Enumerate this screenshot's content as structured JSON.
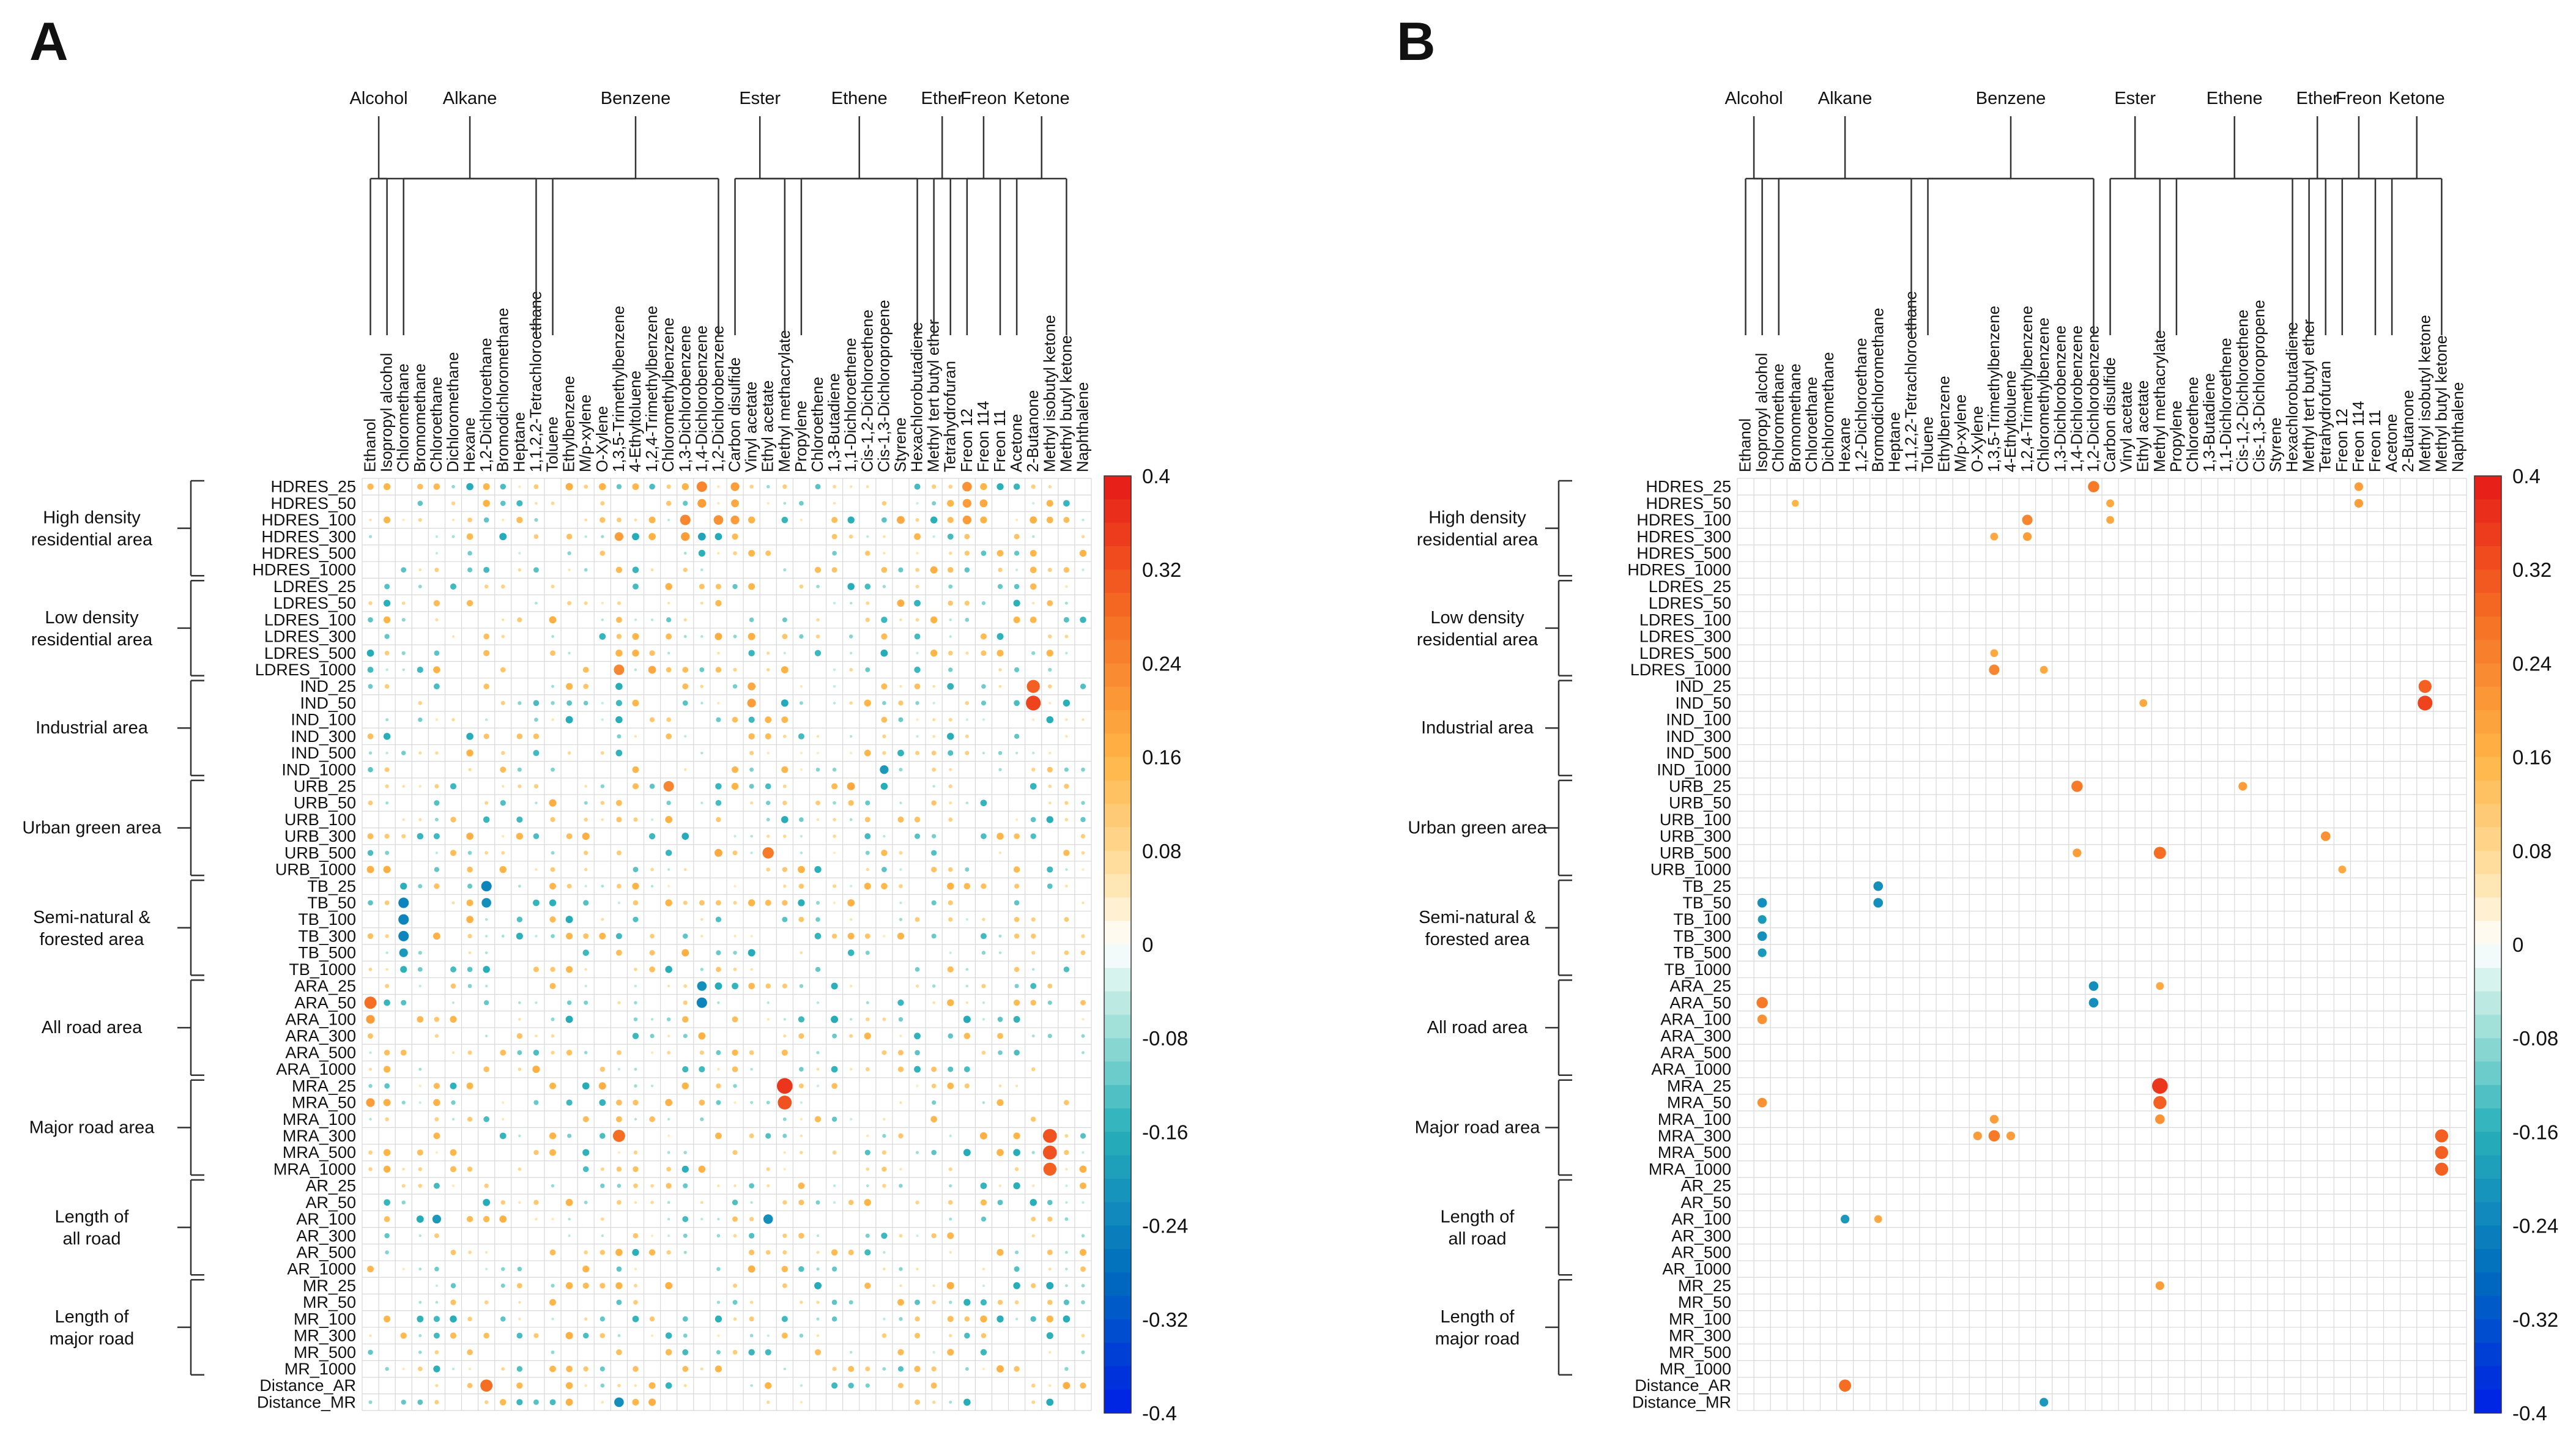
{
  "panels": [
    "A",
    "B"
  ],
  "chart_data": [
    {
      "type": "heatmap",
      "panel": "A",
      "title": "",
      "columns": [
        "Ethanol",
        "Isopropyl alcohol",
        "Chloromethane",
        "Bromomethane",
        "Chloroethane",
        "Dichloromethane",
        "Hexane",
        "1,2-Dichloroethane",
        "Bromodichloromethane",
        "Heptane",
        "1,1,2,2-Tetrachloroethane",
        "Toluene",
        "Ethylbenzene",
        "M/p-xylene",
        "O-Xylene",
        "1,3,5-Trimethylbenzene",
        "4-Ethyltoluene",
        "1,2,4-Trimethylbenzene",
        "Chloromethylbenzene",
        "1,3-Dichlorobenzene",
        "1,4-Dichlorobenzene",
        "1,2-Dichlorobenzene",
        "Carbon disulfide",
        "Vinyl acetate",
        "Ethyl acetate",
        "Methyl methacrylate",
        "Propylene",
        "Chloroethene",
        "1,3-Butadiene",
        "1,1-Dichloroethene",
        "Cis-1,2-Dichloroethene",
        "Cis-1,3-Dichloropropene",
        "Styrene",
        "Hexachlorobutadiene",
        "Methyl tert butyl ether",
        "Tetrahydrofuran",
        "Freon 12",
        "Freon 114",
        "Freon 11",
        "Acetone",
        "2-Butanone",
        "Methyl isobutyl ketone",
        "Methyl butyl ketone",
        "Naphthalene"
      ],
      "column_groups": [
        {
          "name": "Alcohol",
          "start": 0,
          "end": 1
        },
        {
          "name": "Alkane",
          "start": 2,
          "end": 10
        },
        {
          "name": "Benzene",
          "start": 11,
          "end": 21
        },
        {
          "name": "Ester",
          "start": 22,
          "end": 25
        },
        {
          "name": "Ethene",
          "start": 26,
          "end": 33
        },
        {
          "name": "Ether",
          "start": 34,
          "end": 35
        },
        {
          "name": "Freon",
          "start": 36,
          "end": 38
        },
        {
          "name": "Ketone",
          "start": 39,
          "end": 42
        }
      ],
      "rows": [
        "HDRES_25",
        "HDRES_50",
        "HDRES_100",
        "HDRES_300",
        "HDRES_500",
        "HDRES_1000",
        "LDRES_25",
        "LDRES_50",
        "LDRES_100",
        "LDRES_300",
        "LDRES_500",
        "LDRES_1000",
        "IND_25",
        "IND_50",
        "IND_100",
        "IND_300",
        "IND_500",
        "IND_1000",
        "URB_25",
        "URB_50",
        "URB_100",
        "URB_300",
        "URB_500",
        "URB_1000",
        "TB_25",
        "TB_50",
        "TB_100",
        "TB_300",
        "TB_500",
        "TB_1000",
        "ARA_25",
        "ARA_50",
        "ARA_100",
        "ARA_300",
        "ARA_500",
        "ARA_1000",
        "MRA_25",
        "MRA_50",
        "MRA_100",
        "MRA_300",
        "MRA_500",
        "MRA_1000",
        "AR_25",
        "AR_50",
        "AR_100",
        "AR_300",
        "AR_500",
        "AR_1000",
        "MR_25",
        "MR_50",
        "MR_100",
        "MR_300",
        "MR_500",
        "MR_1000",
        "Distance_AR",
        "Distance_MR"
      ],
      "row_groups": [
        {
          "name": "High density residential area",
          "start": 0,
          "end": 5
        },
        {
          "name": "Low density residential area",
          "start": 6,
          "end": 11
        },
        {
          "name": "Industrial area",
          "start": 12,
          "end": 17
        },
        {
          "name": "Urban green area",
          "start": 18,
          "end": 23
        },
        {
          "name": "Semi-natural & forested area",
          "start": 24,
          "end": 29
        },
        {
          "name": "All road area",
          "start": 30,
          "end": 35
        },
        {
          "name": "Major road area",
          "start": 36,
          "end": 41
        },
        {
          "name": "Length of all road",
          "start": 42,
          "end": 47
        },
        {
          "name": "Length of major road",
          "start": 48,
          "end": 53
        }
      ],
      "colorbar": {
        "min": -0.4,
        "max": 0.4,
        "ticks": [
          "0.4",
          "0.32",
          "0.24",
          "0.16",
          "0.08",
          "0",
          "-0.08",
          "-0.16",
          "-0.24",
          "-0.32",
          "-0.4"
        ]
      },
      "correlations_note": "Dense matrix of small correlation circles; notable cells listed (row, column, value).",
      "cells": [
        [
          "HDRES_25",
          "1,4-Dichlorobenzene",
          0.24
        ],
        [
          "HDRES_25",
          "Freon 12",
          0.22
        ],
        [
          "HDRES_25",
          "Carbon disulfide",
          0.2
        ],
        [
          "HDRES_25",
          "Freon 114",
          0.16
        ],
        [
          "HDRES_50",
          "1,4-Dichlorobenzene",
          0.2
        ],
        [
          "HDRES_50",
          "Freon 12",
          0.2
        ],
        [
          "HDRES_50",
          "Freon 114",
          0.18
        ],
        [
          "HDRES_50",
          "Carbon disulfide",
          0.18
        ],
        [
          "HDRES_100",
          "1,3-Dichlorobenzene",
          0.24
        ],
        [
          "HDRES_100",
          "1,2-Dichlorobenzene",
          0.22
        ],
        [
          "HDRES_100",
          "Carbon disulfide",
          0.2
        ],
        [
          "HDRES_100",
          "Freon 12",
          0.2
        ],
        [
          "HDRES_100",
          "Styrene",
          0.18
        ],
        [
          "HDRES_100",
          "Vinyl acetate",
          0.16
        ],
        [
          "HDRES_300",
          "1,3,5-Trimethylbenzene",
          0.2
        ],
        [
          "HDRES_300",
          "1,3-Dichlorobenzene",
          0.2
        ],
        [
          "HDRES_300",
          "1,4-Dichlorobenzene",
          -0.18
        ],
        [
          "LDRES_500",
          "1,3,5-Trimethylbenzene",
          0.16
        ],
        [
          "LDRES_1000",
          "1,3,5-Trimethylbenzene",
          0.24
        ],
        [
          "LDRES_1000",
          "1,2,4-Trimethylbenzene",
          0.18
        ],
        [
          "IND_25",
          "2-Butanone",
          0.3
        ],
        [
          "IND_25",
          "Vinyl acetate",
          0.18
        ],
        [
          "IND_50",
          "2-Butanone",
          0.34
        ],
        [
          "IND_50",
          "Vinyl acetate",
          0.2
        ],
        [
          "IND_1000",
          "Cis-1,3-Dichloropropene",
          -0.2
        ],
        [
          "URB_25",
          "Chloromethylbenzene",
          0.24
        ],
        [
          "URB_25",
          "1,1-Dichloroethene",
          0.18
        ],
        [
          "URB_500",
          "Ethyl acetate",
          0.26
        ],
        [
          "URB_500",
          "1,2-Dichlorobenzene",
          0.18
        ],
        [
          "URB_300",
          "Freon 11",
          0.16
        ],
        [
          "TB_25",
          "1,2-Dichloroethane",
          -0.24
        ],
        [
          "TB_50",
          "Chloromethane",
          -0.24
        ],
        [
          "TB_50",
          "1,2-Dichloroethane",
          -0.22
        ],
        [
          "TB_100",
          "Chloromethane",
          -0.24
        ],
        [
          "TB_300",
          "Chloromethane",
          -0.24
        ],
        [
          "TB_500",
          "Chloromethane",
          -0.2
        ],
        [
          "ARA_25",
          "1,4-Dichlorobenzene",
          -0.22
        ],
        [
          "ARA_50",
          "Ethanol",
          0.28
        ],
        [
          "ARA_50",
          "1,4-Dichlorobenzene",
          -0.24
        ],
        [
          "ARA_100",
          "Ethanol",
          0.2
        ],
        [
          "MRA_25",
          "Methyl methacrylate",
          0.36
        ],
        [
          "MRA_50",
          "Methyl methacrylate",
          0.32
        ],
        [
          "MRA_50",
          "Ethanol",
          0.2
        ],
        [
          "MRA_300",
          "Methyl isobutyl ketone",
          0.32
        ],
        [
          "MRA_300",
          "1,3,5-Trimethylbenzene",
          0.28
        ],
        [
          "MRA_500",
          "Methyl isobutyl ketone",
          0.32
        ],
        [
          "MRA_1000",
          "Methyl isobutyl ketone",
          0.3
        ],
        [
          "AR_100",
          "Chloroethane",
          -0.2
        ],
        [
          "AR_100",
          "Ethyl acetate",
          -0.22
        ],
        [
          "Distance_AR",
          "1,2-Dichloroethane",
          0.28
        ],
        [
          "Distance_MR",
          "1,3,5-Trimethylbenzene",
          -0.22
        ]
      ]
    },
    {
      "type": "heatmap",
      "panel": "B",
      "title": "",
      "columns": [
        "Ethanol",
        "Isopropyl alcohol",
        "Chloromethane",
        "Bromomethane",
        "Chloroethane",
        "Dichloromethane",
        "Hexane",
        "1,2-Dichloroethane",
        "Bromodichloromethane",
        "Heptane",
        "1,1,2,2-Tetrachloroethane",
        "Toluene",
        "Ethylbenzene",
        "M/p-xylene",
        "O-Xylene",
        "1,3,5-Trimethylbenzene",
        "4-Ethyltoluene",
        "1,2,4-Trimethylbenzene",
        "Chloromethylbenzene",
        "1,3-Dichlorobenzene",
        "1,4-Dichlorobenzene",
        "1,2-Dichlorobenzene",
        "Carbon disulfide",
        "Vinyl acetate",
        "Ethyl acetate",
        "Methyl methacrylate",
        "Propylene",
        "Chloroethene",
        "1,3-Butadiene",
        "1,1-Dichloroethene",
        "Cis-1,2-Dichloroethene",
        "Cis-1,3-Dichloropropene",
        "Styrene",
        "Hexachlorobutadiene",
        "Methyl tert butyl ether",
        "Tetrahydrofuran",
        "Freon 12",
        "Freon 114",
        "Freon 11",
        "Acetone",
        "2-Butanone",
        "Methyl isobutyl ketone",
        "Methyl butyl ketone",
        "Naphthalene"
      ],
      "column_groups": [
        {
          "name": "Alcohol",
          "start": 0,
          "end": 1
        },
        {
          "name": "Alkane",
          "start": 2,
          "end": 10
        },
        {
          "name": "Benzene",
          "start": 11,
          "end": 21
        },
        {
          "name": "Ester",
          "start": 22,
          "end": 25
        },
        {
          "name": "Ethene",
          "start": 26,
          "end": 33
        },
        {
          "name": "Ether",
          "start": 34,
          "end": 35
        },
        {
          "name": "Freon",
          "start": 36,
          "end": 38
        },
        {
          "name": "Ketone",
          "start": 39,
          "end": 42
        }
      ],
      "rows": [
        "HDRES_25",
        "HDRES_50",
        "HDRES_100",
        "HDRES_300",
        "HDRES_500",
        "HDRES_1000",
        "LDRES_25",
        "LDRES_50",
        "LDRES_100",
        "LDRES_300",
        "LDRES_500",
        "LDRES_1000",
        "IND_25",
        "IND_50",
        "IND_100",
        "IND_300",
        "IND_500",
        "IND_1000",
        "URB_25",
        "URB_50",
        "URB_100",
        "URB_300",
        "URB_500",
        "URB_1000",
        "TB_25",
        "TB_50",
        "TB_100",
        "TB_300",
        "TB_500",
        "TB_1000",
        "ARA_25",
        "ARA_50",
        "ARA_100",
        "ARA_300",
        "ARA_500",
        "ARA_1000",
        "MRA_25",
        "MRA_50",
        "MRA_100",
        "MRA_300",
        "MRA_500",
        "MRA_1000",
        "AR_25",
        "AR_50",
        "AR_100",
        "AR_300",
        "AR_500",
        "AR_1000",
        "MR_25",
        "MR_50",
        "MR_100",
        "MR_300",
        "MR_500",
        "MR_1000",
        "Distance_AR",
        "Distance_MR"
      ],
      "row_groups": [
        {
          "name": "High density residential area",
          "start": 0,
          "end": 5
        },
        {
          "name": "Low density residential area",
          "start": 6,
          "end": 11
        },
        {
          "name": "Industrial area",
          "start": 12,
          "end": 17
        },
        {
          "name": "Urban green area",
          "start": 18,
          "end": 23
        },
        {
          "name": "Semi-natural & forested area",
          "start": 24,
          "end": 29
        },
        {
          "name": "All road area",
          "start": 30,
          "end": 35
        },
        {
          "name": "Major road area",
          "start": 36,
          "end": 41
        },
        {
          "name": "Length of all road",
          "start": 42,
          "end": 47
        },
        {
          "name": "Length of major road",
          "start": 48,
          "end": 53
        }
      ],
      "colorbar": {
        "min": -0.4,
        "max": 0.4,
        "ticks": [
          "0.4",
          "0.32",
          "0.24",
          "0.16",
          "0.08",
          "0",
          "-0.08",
          "-0.16",
          "-0.24",
          "-0.32",
          "-0.4"
        ]
      },
      "cells": [
        [
          "HDRES_25",
          "1,2-Dichlorobenzene",
          0.26
        ],
        [
          "HDRES_25",
          "Freon 114",
          0.2
        ],
        [
          "HDRES_50",
          "Bromomethane",
          0.16
        ],
        [
          "HDRES_50",
          "Carbon disulfide",
          0.18
        ],
        [
          "HDRES_50",
          "Freon 114",
          0.2
        ],
        [
          "HDRES_100",
          "1,2,4-Trimethylbenzene",
          0.24
        ],
        [
          "HDRES_100",
          "Carbon disulfide",
          0.18
        ],
        [
          "HDRES_300",
          "1,3,5-Trimethylbenzene",
          0.18
        ],
        [
          "HDRES_300",
          "1,2,4-Trimethylbenzene",
          0.2
        ],
        [
          "LDRES_500",
          "1,3,5-Trimethylbenzene",
          0.18
        ],
        [
          "LDRES_1000",
          "1,3,5-Trimethylbenzene",
          0.24
        ],
        [
          "LDRES_1000",
          "Chloromethylbenzene",
          0.18
        ],
        [
          "IND_25",
          "Methyl isobutyl ketone",
          0.3
        ],
        [
          "IND_50",
          "Methyl isobutyl ketone",
          0.34
        ],
        [
          "IND_50",
          "Ethyl acetate",
          0.18
        ],
        [
          "URB_25",
          "1,4-Dichlorobenzene",
          0.26
        ],
        [
          "URB_25",
          "Cis-1,2-Dichloroethene",
          0.2
        ],
        [
          "URB_300",
          "Tetrahydrofuran",
          0.22
        ],
        [
          "URB_500",
          "1,4-Dichlorobenzene",
          0.2
        ],
        [
          "URB_500",
          "Methyl methacrylate",
          0.28
        ],
        [
          "URB_1000",
          "Freon 12",
          0.18
        ],
        [
          "TB_25",
          "Bromodichloromethane",
          -0.22
        ],
        [
          "TB_50",
          "Isopropyl alcohol",
          -0.22
        ],
        [
          "TB_50",
          "Bromodichloromethane",
          -0.22
        ],
        [
          "TB_100",
          "Isopropyl alcohol",
          -0.2
        ],
        [
          "TB_300",
          "Isopropyl alcohol",
          -0.22
        ],
        [
          "TB_500",
          "Isopropyl alcohol",
          -0.2
        ],
        [
          "ARA_25",
          "1,2-Dichlorobenzene",
          -0.22
        ],
        [
          "ARA_25",
          "Methyl methacrylate",
          0.18
        ],
        [
          "ARA_50",
          "Isopropyl alcohol",
          0.26
        ],
        [
          "ARA_50",
          "1,2-Dichlorobenzene",
          -0.22
        ],
        [
          "ARA_100",
          "Isopropyl alcohol",
          0.22
        ],
        [
          "MRA_25",
          "Methyl methacrylate",
          0.36
        ],
        [
          "MRA_50",
          "Isopropyl alcohol",
          0.22
        ],
        [
          "MRA_50",
          "Methyl methacrylate",
          0.3
        ],
        [
          "MRA_100",
          "1,3,5-Trimethylbenzene",
          0.2
        ],
        [
          "MRA_100",
          "Methyl methacrylate",
          0.22
        ],
        [
          "MRA_300",
          "O-Xylene",
          0.2
        ],
        [
          "MRA_300",
          "1,3,5-Trimethylbenzene",
          0.26
        ],
        [
          "MRA_300",
          "4-Ethyltoluene",
          0.2
        ],
        [
          "MRA_300",
          "Methyl butyl ketone",
          0.3
        ],
        [
          "MRA_500",
          "Methyl butyl ketone",
          0.3
        ],
        [
          "MRA_1000",
          "Methyl butyl ketone",
          0.3
        ],
        [
          "AR_100",
          "Hexane",
          -0.2
        ],
        [
          "AR_100",
          "Bromodichloromethane",
          0.18
        ],
        [
          "MR_25",
          "Methyl methacrylate",
          0.2
        ],
        [
          "Distance_AR",
          "Hexane",
          0.28
        ],
        [
          "Distance_MR",
          "Chloromethylbenzene",
          -0.2
        ]
      ]
    }
  ]
}
